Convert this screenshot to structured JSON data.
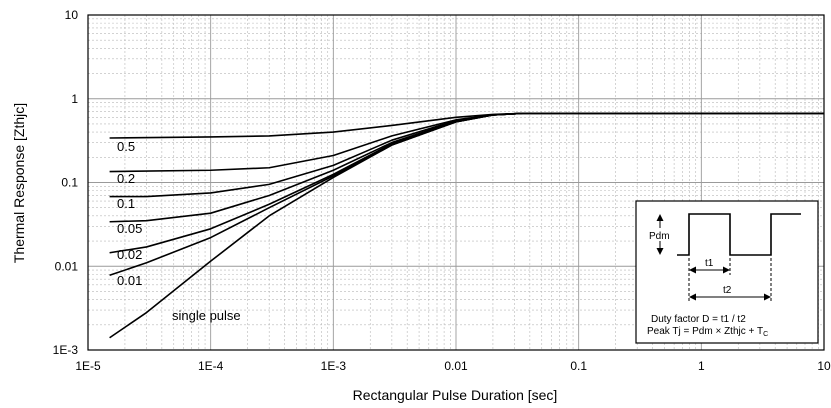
{
  "chart_data": {
    "type": "line",
    "xlabel": "Rectangular Pulse Duration [sec]",
    "ylabel": "Thermal Response [Zthjc]",
    "x_scale": "log",
    "y_scale": "log",
    "xlim": [
      1e-05,
      10
    ],
    "ylim": [
      0.001,
      10
    ],
    "x_ticks": [
      {
        "value": 1e-05,
        "label": "1E-5"
      },
      {
        "value": 0.0001,
        "label": "1E-4"
      },
      {
        "value": 0.001,
        "label": "1E-3"
      },
      {
        "value": 0.01,
        "label": "0.01"
      },
      {
        "value": 0.1,
        "label": "0.1"
      },
      {
        "value": 1,
        "label": "1"
      },
      {
        "value": 10,
        "label": "10"
      }
    ],
    "y_ticks": [
      {
        "value": 0.001,
        "label": "1E-3"
      },
      {
        "value": 0.01,
        "label": "0.01"
      },
      {
        "value": 0.1,
        "label": "0.1"
      },
      {
        "value": 1,
        "label": "1"
      },
      {
        "value": 10,
        "label": "10"
      }
    ],
    "grid": true,
    "series": [
      {
        "name": "0.5",
        "x": [
          1.5e-05,
          0.0001,
          0.0003,
          0.001,
          0.003,
          0.01,
          0.02,
          0.035,
          10
        ],
        "y": [
          0.34,
          0.35,
          0.36,
          0.4,
          0.48,
          0.6,
          0.65,
          0.67,
          0.67
        ]
      },
      {
        "name": "0.2",
        "x": [
          1.5e-05,
          0.0001,
          0.0003,
          0.001,
          0.003,
          0.01,
          0.02,
          0.035,
          10
        ],
        "y": [
          0.135,
          0.14,
          0.15,
          0.21,
          0.36,
          0.56,
          0.64,
          0.67,
          0.67
        ]
      },
      {
        "name": "0.1",
        "x": [
          1.5e-05,
          3e-05,
          0.0001,
          0.0003,
          0.001,
          0.003,
          0.01,
          0.02,
          0.035,
          10
        ],
        "y": [
          0.068,
          0.068,
          0.075,
          0.095,
          0.16,
          0.32,
          0.55,
          0.64,
          0.67,
          0.67
        ]
      },
      {
        "name": "0.05",
        "x": [
          1.5e-05,
          3e-05,
          0.0001,
          0.0003,
          0.001,
          0.003,
          0.01,
          0.02,
          0.035,
          10
        ],
        "y": [
          0.034,
          0.035,
          0.043,
          0.07,
          0.14,
          0.3,
          0.54,
          0.64,
          0.67,
          0.67
        ]
      },
      {
        "name": "0.02",
        "x": [
          1.5e-05,
          3e-05,
          0.0001,
          0.0003,
          0.001,
          0.003,
          0.01,
          0.02,
          0.035,
          10
        ],
        "y": [
          0.0145,
          0.017,
          0.028,
          0.055,
          0.125,
          0.29,
          0.53,
          0.64,
          0.67,
          0.67
        ]
      },
      {
        "name": "0.01",
        "x": [
          1.5e-05,
          3e-05,
          0.0001,
          0.0003,
          0.001,
          0.003,
          0.01,
          0.02,
          0.035,
          10
        ],
        "y": [
          0.0078,
          0.011,
          0.022,
          0.05,
          0.12,
          0.28,
          0.53,
          0.64,
          0.67,
          0.67
        ]
      },
      {
        "name": "single pulse",
        "x": [
          1.5e-05,
          3e-05,
          0.0001,
          0.0003,
          0.001,
          0.003,
          0.01,
          0.02,
          0.035,
          10
        ],
        "y": [
          0.0014,
          0.0028,
          0.0115,
          0.04,
          0.115,
          0.28,
          0.53,
          0.64,
          0.67,
          0.67
        ]
      }
    ],
    "inset": {
      "pdm_label": "Pdm",
      "t1_label": "t1",
      "t2_label": "t2",
      "formula_1": "Duty factor D = t1 / t2",
      "formula_2_main": "Peak Tj = Pdm × Zthjc + T",
      "formula_2_sub": "C"
    }
  }
}
